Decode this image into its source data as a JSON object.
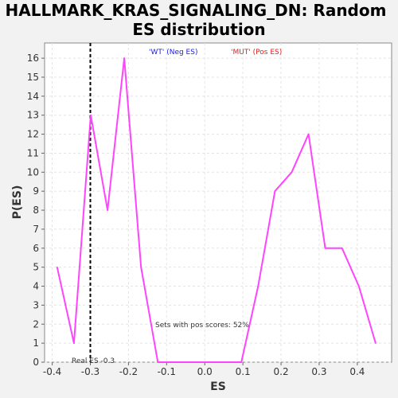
{
  "chart_data": {
    "type": "line",
    "title_lines": [
      "HALLMARK_KRAS_SIGNALING_DN: Random",
      "ES distribution"
    ],
    "xlabel": "ES",
    "ylabel": "P(ES)",
    "xlim": [
      -0.42,
      0.49
    ],
    "ylim": [
      0,
      16.8
    ],
    "x_ticks": [
      -0.4,
      -0.3,
      -0.2,
      -0.1,
      0.0,
      0.1,
      0.2,
      0.3,
      0.4
    ],
    "x_tick_labels": [
      "-0.4",
      "-0.3",
      "-0.2",
      "-0.1",
      "0.0",
      "0.1",
      "0.2",
      "0.3",
      "0.4"
    ],
    "y_ticks": [
      0,
      1,
      2,
      3,
      4,
      5,
      6,
      7,
      8,
      9,
      10,
      11,
      12,
      13,
      14,
      15,
      16
    ],
    "y_tick_labels": [
      "0",
      "1",
      "2",
      "3",
      "4",
      "5",
      "6",
      "7",
      "8",
      "9",
      "10",
      "11",
      "12",
      "13",
      "14",
      "15",
      "16"
    ],
    "grid": true,
    "series": [
      {
        "color": "#ff44ff",
        "x": [
          -0.387,
          -0.343,
          -0.299,
          -0.255,
          -0.211,
          -0.167,
          -0.123,
          0.052,
          0.096,
          0.14,
          0.184,
          0.228,
          0.272,
          0.316,
          0.36,
          0.404,
          0.448
        ],
        "y": [
          5,
          1,
          13,
          8,
          16,
          5,
          0,
          0,
          0,
          4,
          9,
          10,
          12,
          6,
          6,
          4,
          1
        ]
      }
    ],
    "vline": {
      "x": -0.3,
      "label": "Real ES -0.3",
      "color": "#000000"
    },
    "legend": [
      {
        "label": "'WT' (Neg ES)",
        "color": "#2020e0"
      },
      {
        "label": "'MUT' (Pos ES)",
        "color": "#e02020"
      }
    ],
    "annotation": "Sets with pos scores: 52%"
  }
}
